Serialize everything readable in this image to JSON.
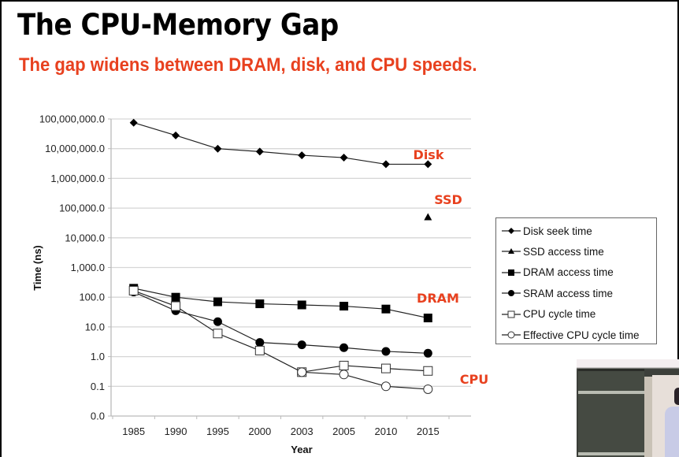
{
  "slide": {
    "title": "The CPU-Memory Gap",
    "subtitle": "The gap widens between DRAM, disk, and CPU speeds.",
    "accent_color": "#e8411f"
  },
  "chart_data": {
    "type": "line",
    "title": "",
    "xlabel": "Year",
    "ylabel": "Time (ns)",
    "yscale": "log",
    "ylim": [
      0.01,
      100000000
    ],
    "categories": [
      "1985",
      "1990",
      "1995",
      "2000",
      "2003",
      "2005",
      "2010",
      "2015"
    ],
    "y_tick_labels": [
      "100,000,000.0",
      "10,000,000.0",
      "1,000,000.0",
      "100,000.0",
      "10,000.0",
      "1,000.0",
      "100.0",
      "10.0",
      "1.0",
      "0.1",
      "0.0"
    ],
    "y_tick_values": [
      100000000,
      10000000,
      1000000,
      100000,
      10000,
      1000,
      100,
      10,
      1,
      0.1,
      0.01
    ],
    "grid": true,
    "legend_position": "right",
    "series": [
      {
        "name": "Disk seek time",
        "marker": "diamond",
        "values": [
          75000000,
          28000000,
          10000000,
          8000000,
          6000000,
          5000000,
          3000000,
          3000000
        ]
      },
      {
        "name": "SSD access time",
        "marker": "triangle",
        "values": [
          null,
          null,
          null,
          null,
          null,
          null,
          null,
          50000
        ]
      },
      {
        "name": "DRAM access time",
        "marker": "square",
        "values": [
          200,
          100,
          70,
          60,
          55,
          50,
          40,
          20
        ]
      },
      {
        "name": "SRAM access time",
        "marker": "circle",
        "values": [
          150,
          35,
          15,
          3,
          2.5,
          2,
          1.5,
          1.3
        ]
      },
      {
        "name": "CPU cycle time",
        "marker": "open-square",
        "values": [
          166,
          50,
          6,
          1.6,
          0.3,
          0.5,
          0.4,
          0.33
        ]
      },
      {
        "name": "Effective CPU cycle time",
        "marker": "open-circle",
        "values": [
          null,
          null,
          null,
          null,
          0.3,
          0.25,
          0.1,
          0.08
        ]
      }
    ],
    "annotations": [
      {
        "text": "Disk",
        "near_series": "Disk seek time",
        "x": "2010",
        "y": 12000000
      },
      {
        "text": "SSD",
        "near_series": "SSD access time",
        "x": "2015",
        "y": 150000
      },
      {
        "text": "DRAM",
        "near_series": "DRAM access time",
        "x": "2010",
        "y": 100
      },
      {
        "text": "CPU",
        "near_series": "CPU cycle time",
        "x": "2015",
        "y": 0.15
      }
    ]
  }
}
